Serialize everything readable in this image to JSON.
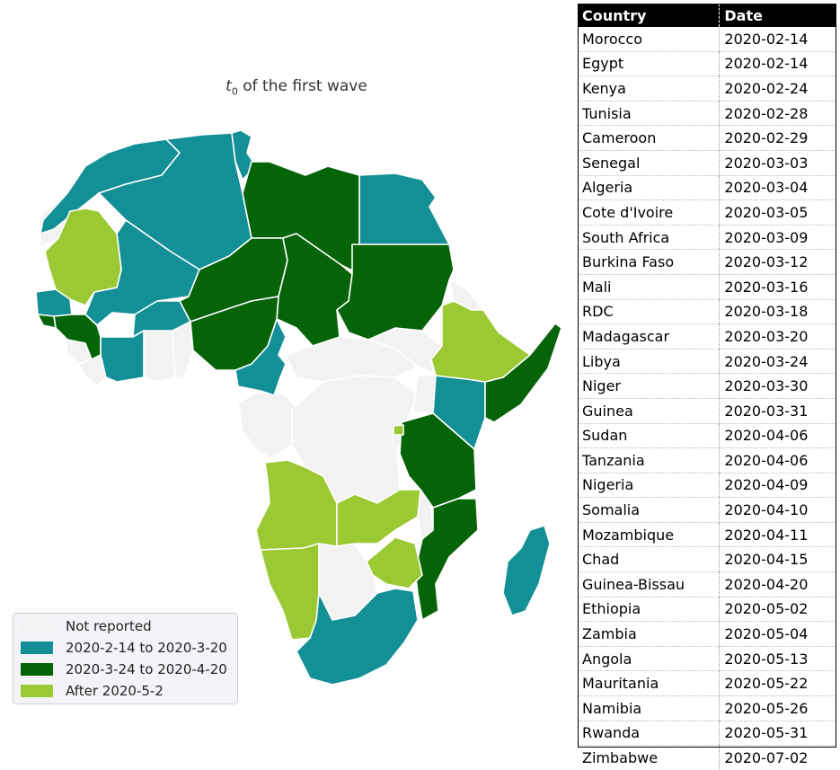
{
  "map": {
    "title_main": "t",
    "title_sub": "0",
    "title_rest": " of the first wave",
    "colors": {
      "not_reported": "#f2f2f2",
      "early": "#138f96",
      "mid": "#056308",
      "late": "#9bc933"
    },
    "legend": [
      {
        "label": "Not reported",
        "color": "#f2f2f2"
      },
      {
        "label": "2020-2-14 to 2020-3-20",
        "color": "#138f96"
      },
      {
        "label": "2020-3-24 to 2020-4-20",
        "color": "#056308"
      },
      {
        "label": "After 2020-5-2",
        "color": "#9bc933"
      }
    ]
  },
  "table": {
    "headers": [
      "Country",
      "Date"
    ],
    "rows": [
      [
        "Morocco",
        "2020-02-14"
      ],
      [
        "Egypt",
        "2020-02-14"
      ],
      [
        "Kenya",
        "2020-02-24"
      ],
      [
        "Tunisia",
        "2020-02-28"
      ],
      [
        "Cameroon",
        "2020-02-29"
      ],
      [
        "Senegal",
        "2020-03-03"
      ],
      [
        "Algeria",
        "2020-03-04"
      ],
      [
        "Cote d'Ivoire",
        "2020-03-05"
      ],
      [
        "South Africa",
        "2020-03-09"
      ],
      [
        "Burkina Faso",
        "2020-03-12"
      ],
      [
        "Mali",
        "2020-03-16"
      ],
      [
        "RDC",
        "2020-03-18"
      ],
      [
        "Madagascar",
        "2020-03-20"
      ],
      [
        "Libya",
        "2020-03-24"
      ],
      [
        "Niger",
        "2020-03-30"
      ],
      [
        "Guinea",
        "2020-03-31"
      ],
      [
        "Sudan",
        "2020-04-06"
      ],
      [
        "Tanzania",
        "2020-04-06"
      ],
      [
        "Nigeria",
        "2020-04-09"
      ],
      [
        "Somalia",
        "2020-04-10"
      ],
      [
        "Mozambique",
        "2020-04-11"
      ],
      [
        "Chad",
        "2020-04-15"
      ],
      [
        "Guinea-Bissau",
        "2020-04-20"
      ],
      [
        "Ethiopia",
        "2020-05-02"
      ],
      [
        "Zambia",
        "2020-05-04"
      ],
      [
        "Angola",
        "2020-05-13"
      ],
      [
        "Mauritania",
        "2020-05-22"
      ],
      [
        "Namibia",
        "2020-05-26"
      ],
      [
        "Rwanda",
        "2020-05-31"
      ],
      [
        "Zimbabwe",
        "2020-07-02"
      ]
    ]
  }
}
